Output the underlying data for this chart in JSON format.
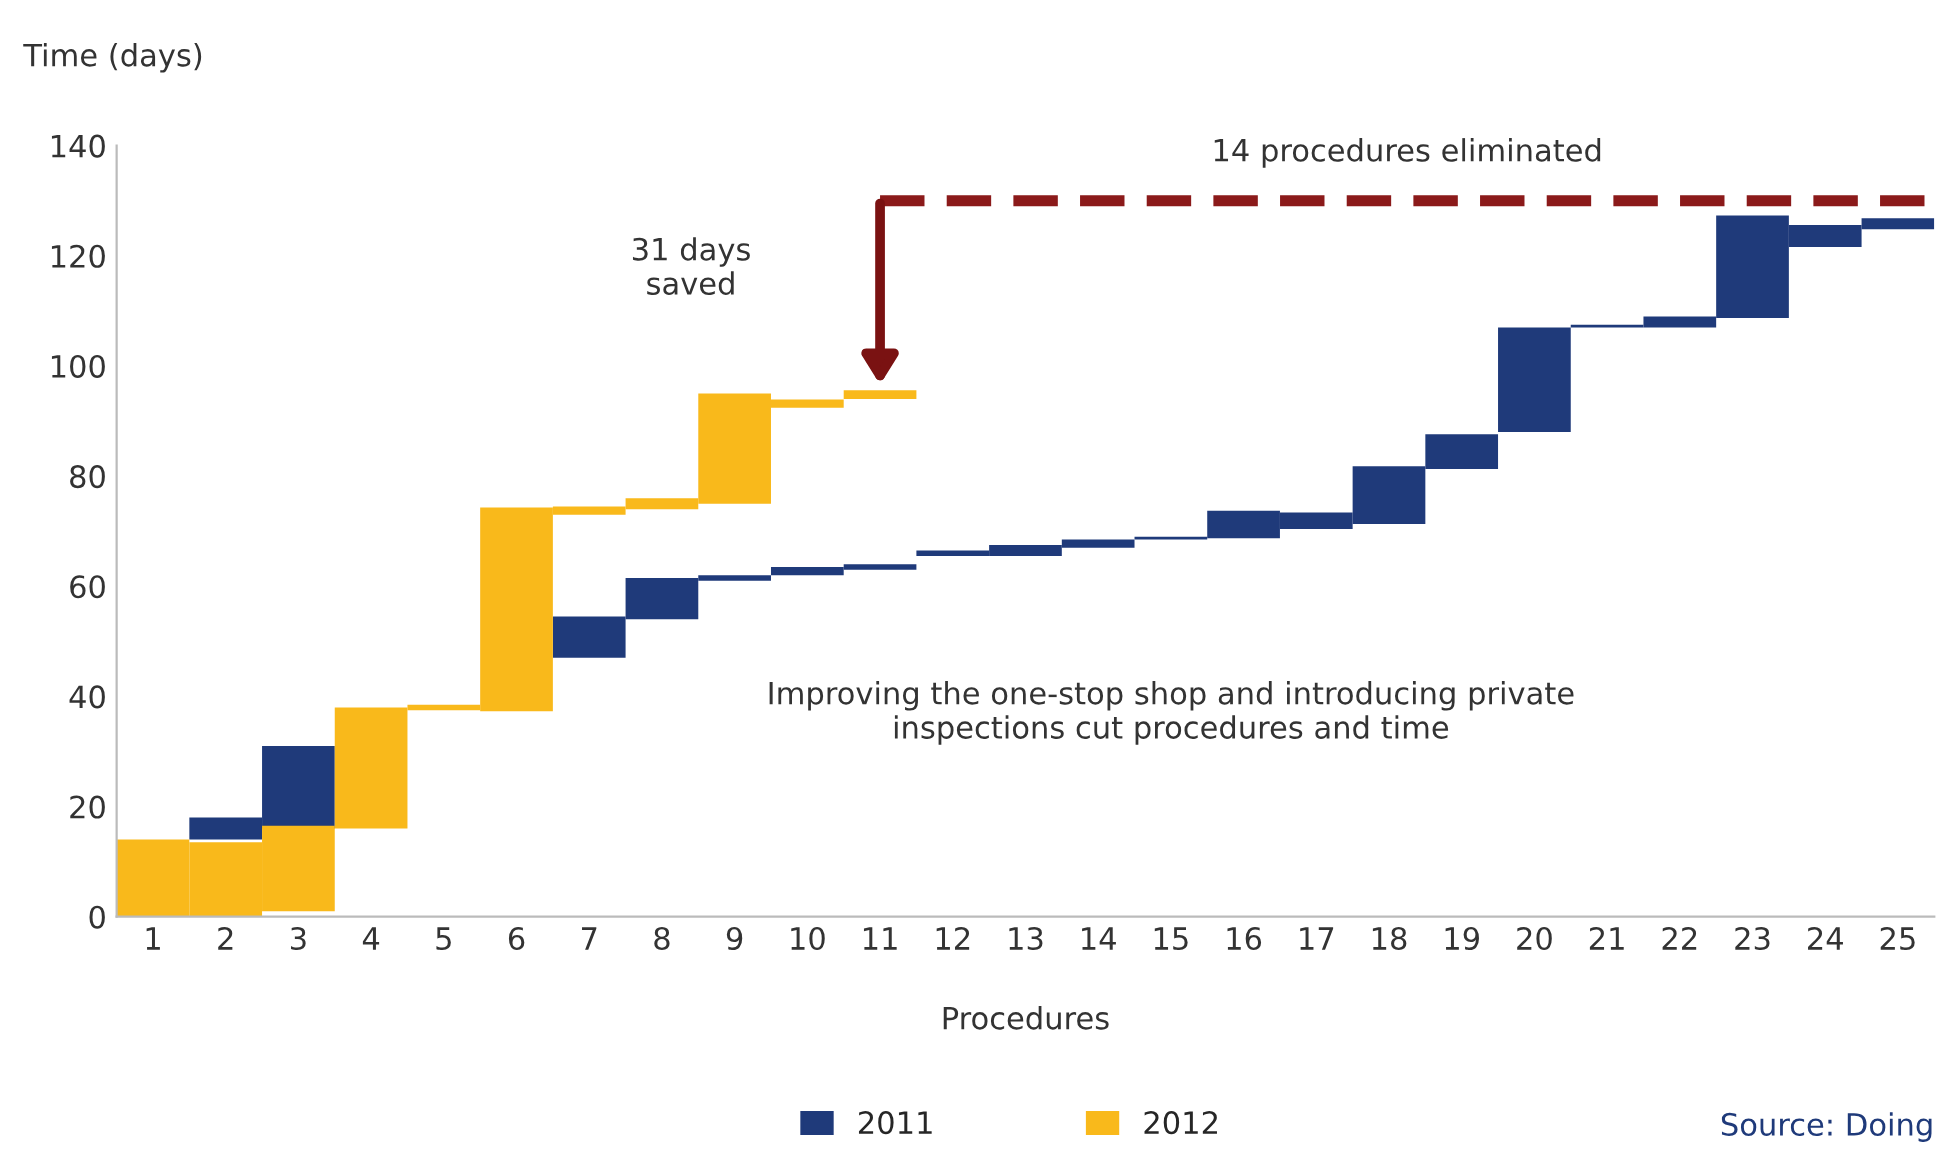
{
  "chart_data": {
    "type": "bar",
    "ylabel": "Time (days)",
    "xlabel": "Procedures",
    "categories": [
      "1",
      "2",
      "3",
      "4",
      "5",
      "6",
      "7",
      "8",
      "9",
      "10",
      "11",
      "12",
      "13",
      "14",
      "15",
      "16",
      "17",
      "18",
      "19",
      "20",
      "21",
      "22",
      "23",
      "24",
      "25"
    ],
    "series": [
      {
        "name": "2011",
        "color": "#1f3a7a",
        "base": [
          null,
          14,
          16,
          null,
          null,
          null,
          47,
          54,
          61,
          62,
          63,
          65.5,
          65.5,
          67,
          68.5,
          68.7,
          70.4,
          71.3,
          81.3,
          88,
          107,
          107,
          108.7,
          121.6,
          124.8
        ],
        "values": [
          null,
          4,
          15,
          null,
          null,
          null,
          7.5,
          7.5,
          1,
          1.5,
          1,
          1,
          2,
          1.5,
          0.5,
          5,
          3,
          10.5,
          6.3,
          19,
          0.5,
          2,
          18.6,
          4,
          2
        ]
      },
      {
        "name": "2012",
        "color": "#f9b91b",
        "base": [
          0,
          0,
          1,
          16,
          37.5,
          37.3,
          73,
          74,
          75,
          92.4,
          94,
          null,
          null,
          null,
          null,
          null,
          null,
          null,
          null,
          null,
          null,
          null,
          null,
          null,
          null
        ],
        "values": [
          14,
          13.5,
          15.5,
          22,
          1,
          37,
          1.5,
          2,
          20,
          1.5,
          1.6,
          null,
          null,
          null,
          null,
          null,
          null,
          null,
          null,
          null,
          null,
          null,
          null,
          null,
          null
        ]
      }
    ],
    "ylim": [
      0,
      140
    ],
    "yticks": [
      0,
      20,
      40,
      60,
      80,
      100,
      120,
      140
    ],
    "ref_lines": [
      {
        "axis": "y",
        "value": 130,
        "label": "14 procedures eliminated",
        "color": "#8b1a1a",
        "line_style": "dashed"
      }
    ],
    "annotations": [
      "31 days\nsaved",
      "Improving the one-stop shop and introducing private\ninspections cut procedures and time",
      "Source: Doing"
    ],
    "legend": "bottom",
    "grid": false
  }
}
